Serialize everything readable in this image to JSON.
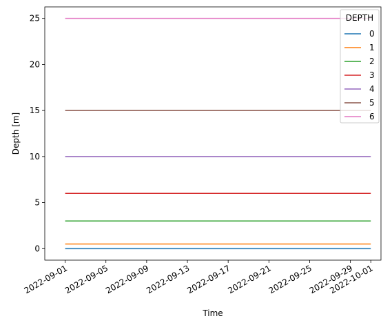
{
  "chart_data": {
    "type": "line",
    "title": "",
    "xlabel": "Time",
    "ylabel": "Depth [m]",
    "x_start": "2022-09-01",
    "x_end": "2022-10-01",
    "xlim": [
      "2022-08-30",
      "2022-10-02"
    ],
    "ylim": [
      -1.25,
      26.25
    ],
    "x_ticks": [
      "2022-09-01",
      "2022-09-05",
      "2022-09-09",
      "2022-09-13",
      "2022-09-17",
      "2022-09-21",
      "2022-09-25",
      "2022-09-29",
      "2022-10-01"
    ],
    "y_ticks": [
      0,
      5,
      10,
      15,
      20,
      25
    ],
    "legend": {
      "title": "DEPTH",
      "placement": "top-right"
    },
    "grid": false,
    "series": [
      {
        "name": "0",
        "color": "#1f77b4",
        "values": [
          0,
          0
        ]
      },
      {
        "name": "1",
        "color": "#ff7f0e",
        "values": [
          0.5,
          0.5
        ]
      },
      {
        "name": "2",
        "color": "#2ca02c",
        "values": [
          3,
          3
        ]
      },
      {
        "name": "3",
        "color": "#d62728",
        "values": [
          6,
          6
        ]
      },
      {
        "name": "4",
        "color": "#9467bd",
        "values": [
          10,
          10
        ]
      },
      {
        "name": "5",
        "color": "#8c564b",
        "values": [
          15,
          15
        ]
      },
      {
        "name": "6",
        "color": "#e377c2",
        "values": [
          25,
          25
        ]
      }
    ]
  }
}
